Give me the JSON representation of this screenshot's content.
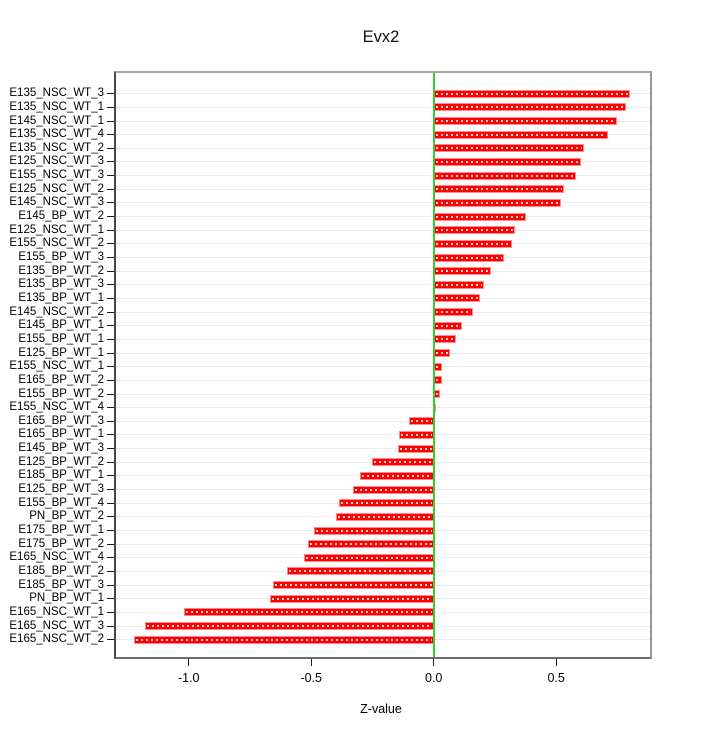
{
  "chart_data": {
    "type": "bar",
    "orientation": "horizontal",
    "title": "Evx2",
    "xlabel": "Z-value",
    "ylabel": "",
    "xlim": [
      -1.297,
      0.883
    ],
    "x_tick_values": [
      -1.0,
      -0.5,
      0.0,
      0.5
    ],
    "x_tick_labels": [
      "-1.0",
      "-0.5",
      "0.0",
      "0.5"
    ],
    "grid": "horizontal dotted per row",
    "legend": "none",
    "bar_color": "#ff0000",
    "zero_line_color": "#2fd32f",
    "grid_color": "#d9d9d9",
    "categories": [
      "E135_NSC_WT_3",
      "E135_NSC_WT_1",
      "E145_NSC_WT_1",
      "E135_NSC_WT_4",
      "E135_NSC_WT_2",
      "E125_NSC_WT_3",
      "E155_NSC_WT_3",
      "E125_NSC_WT_2",
      "E145_NSC_WT_3",
      "E145_BP_WT_2",
      "E125_NSC_WT_1",
      "E155_NSC_WT_2",
      "E155_BP_WT_3",
      "E135_BP_WT_2",
      "E135_BP_WT_3",
      "E135_BP_WT_1",
      "E145_NSC_WT_2",
      "E145_BP_WT_1",
      "E155_BP_WT_1",
      "E125_BP_WT_1",
      "E155_NSC_WT_1",
      "E165_BP_WT_2",
      "E155_BP_WT_2",
      "E155_NSC_WT_4",
      "E165_BP_WT_3",
      "E165_BP_WT_1",
      "E145_BP_WT_3",
      "E125_BP_WT_2",
      "E185_BP_WT_1",
      "E125_BP_WT_3",
      "E155_BP_WT_4",
      "PN_BP_WT_2",
      "E175_BP_WT_1",
      "E175_BP_WT_2",
      "E165_NSC_WT_4",
      "E185_BP_WT_2",
      "E185_BP_WT_3",
      "PN_BP_WT_1",
      "E165_NSC_WT_1",
      "E165_NSC_WT_3",
      "E165_NSC_WT_2"
    ],
    "values": [
      0.8,
      0.785,
      0.75,
      0.71,
      0.615,
      0.6,
      0.58,
      0.53,
      0.52,
      0.375,
      0.33,
      0.32,
      0.285,
      0.235,
      0.205,
      0.19,
      0.16,
      0.115,
      0.09,
      0.065,
      0.034,
      0.034,
      0.024,
      0.01,
      -0.1,
      -0.14,
      -0.145,
      -0.25,
      -0.3,
      -0.33,
      -0.385,
      -0.4,
      -0.49,
      -0.515,
      -0.53,
      -0.6,
      -0.655,
      -0.67,
      -1.02,
      -1.18,
      -1.225
    ]
  }
}
